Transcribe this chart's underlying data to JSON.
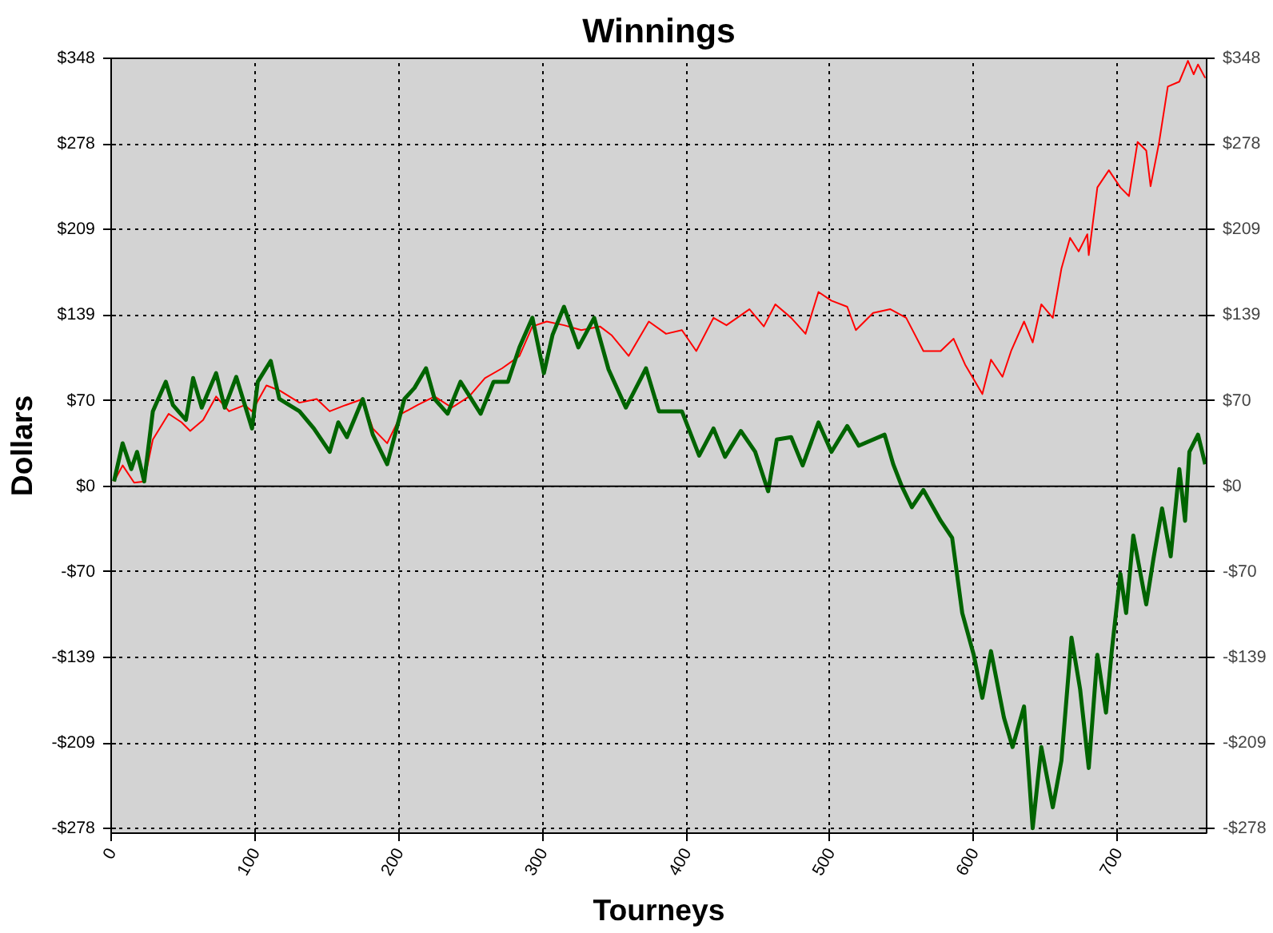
{
  "chart_data": {
    "type": "line",
    "title": "Winnings",
    "xlabel": "Tourneys",
    "ylabel": "Dollars",
    "xlim": [
      0,
      762
    ],
    "xticks": [
      0,
      100,
      200,
      300,
      400,
      500,
      600,
      700
    ],
    "ylim": [
      -282,
      348
    ],
    "yticks": [
      {
        "value": -278.4,
        "label": "-$278"
      },
      {
        "value": -208.8,
        "label": "-$209"
      },
      {
        "value": -139.2,
        "label": "-$139"
      },
      {
        "value": -69.6,
        "label": "-$70"
      },
      {
        "value": 0,
        "label": "$0"
      },
      {
        "value": 69.6,
        "label": "$70"
      },
      {
        "value": 139.2,
        "label": "$139"
      },
      {
        "value": 208.8,
        "label": "$209"
      },
      {
        "value": 278.4,
        "label": "$278"
      },
      {
        "value": 348,
        "label": "$348"
      }
    ],
    "y2lim": [
      -282,
      348
    ],
    "y2ticks": [
      {
        "value": -278.4,
        "label": "-$278"
      },
      {
        "value": -208.8,
        "label": "-$209"
      },
      {
        "value": -139.2,
        "label": "-$139"
      },
      {
        "value": -69.6,
        "label": "-$70"
      },
      {
        "value": 0,
        "label": "$0"
      },
      {
        "value": 69.6,
        "label": "$70"
      },
      {
        "value": 139.2,
        "label": "$139"
      },
      {
        "value": 208.8,
        "label": "$209"
      },
      {
        "value": 278.4,
        "label": "$278"
      },
      {
        "value": 348,
        "label": "$348"
      }
    ],
    "grid": true,
    "ref_lines": [
      {
        "axis": "y",
        "value": 0,
        "label": null,
        "color": "#000000",
        "line_style": "solid"
      }
    ],
    "series": [
      {
        "color": "#ff0000",
        "x": [
          2,
          8,
          16,
          23,
          29,
          40,
          49,
          55,
          64,
          73,
          82,
          93,
          98,
          108,
          117,
          131,
          143,
          152,
          163,
          175,
          182,
          192,
          202,
          213,
          225,
          237,
          249,
          260,
          272,
          284,
          293,
          303,
          315,
          327,
          340,
          348,
          360,
          374,
          386,
          397,
          407,
          419,
          428,
          444,
          454,
          462,
          473,
          483,
          492,
          501,
          512,
          518,
          530,
          542,
          553,
          565,
          577,
          586,
          594,
          606,
          612,
          620,
          626,
          635,
          641,
          647,
          655,
          661,
          667,
          673,
          679,
          680,
          686,
          694,
          702,
          708,
          714,
          720,
          723,
          729,
          735,
          743,
          749,
          753,
          756,
          761
        ],
        "values": [
          4,
          17,
          3,
          4,
          38,
          59,
          52,
          45,
          54,
          73,
          61,
          66,
          61,
          82,
          78,
          68,
          71,
          61,
          66,
          71,
          47,
          35,
          59,
          66,
          73,
          64,
          73,
          88,
          96,
          106,
          130,
          134,
          131,
          127,
          130,
          123,
          106,
          134,
          124,
          127,
          110,
          137,
          131,
          144,
          130,
          148,
          137,
          124,
          158,
          151,
          146,
          127,
          141,
          144,
          137,
          110,
          110,
          120,
          99,
          75,
          103,
          89,
          110,
          134,
          117,
          148,
          137,
          177,
          202,
          191,
          205,
          188,
          243,
          257,
          243,
          236,
          280,
          273,
          244,
          280,
          325,
          329,
          346,
          335,
          343,
          332
        ]
      },
      {
        "color": "#006400",
        "x": [
          2,
          8,
          14,
          18,
          23,
          29,
          38,
          43,
          52,
          57,
          63,
          73,
          79,
          87,
          98,
          102,
          111,
          117,
          131,
          141,
          152,
          158,
          164,
          175,
          182,
          192,
          204,
          211,
          219,
          225,
          234,
          243,
          257,
          266,
          276,
          284,
          293,
          301,
          307,
          315,
          325,
          336,
          346,
          358,
          369,
          372,
          381,
          397,
          409,
          419,
          427,
          438,
          448,
          457,
          463,
          473,
          481,
          492,
          501,
          512,
          520,
          538,
          544,
          550,
          557,
          565,
          577,
          585,
          592,
          600,
          606,
          612,
          621,
          627,
          635,
          641,
          647,
          655,
          661,
          668,
          674,
          680,
          686,
          692,
          696,
          702,
          706,
          711,
          720,
          725,
          731,
          737,
          743,
          747,
          750,
          756,
          761
        ],
        "values": [
          4,
          35,
          14,
          28,
          4,
          61,
          85,
          66,
          54,
          88,
          64,
          92,
          64,
          89,
          47,
          85,
          102,
          71,
          61,
          47,
          28,
          52,
          40,
          71,
          42,
          18,
          71,
          80,
          96,
          71,
          59,
          85,
          59,
          85,
          85,
          113,
          137,
          92,
          123,
          146,
          113,
          137,
          95,
          64,
          89,
          96,
          61,
          61,
          25,
          47,
          24,
          45,
          28,
          -4,
          38,
          40,
          17,
          52,
          28,
          49,
          33,
          42,
          18,
          0,
          -17,
          -3,
          -28,
          -42,
          -103,
          -137,
          -172,
          -134,
          -188,
          -212,
          -179,
          -278,
          -212,
          -261,
          -223,
          -123,
          -165,
          -229,
          -137,
          -184,
          -134,
          -71,
          -103,
          -40,
          -96,
          -59,
          -18,
          -57,
          14,
          -28,
          28,
          42,
          18
        ]
      }
    ]
  }
}
